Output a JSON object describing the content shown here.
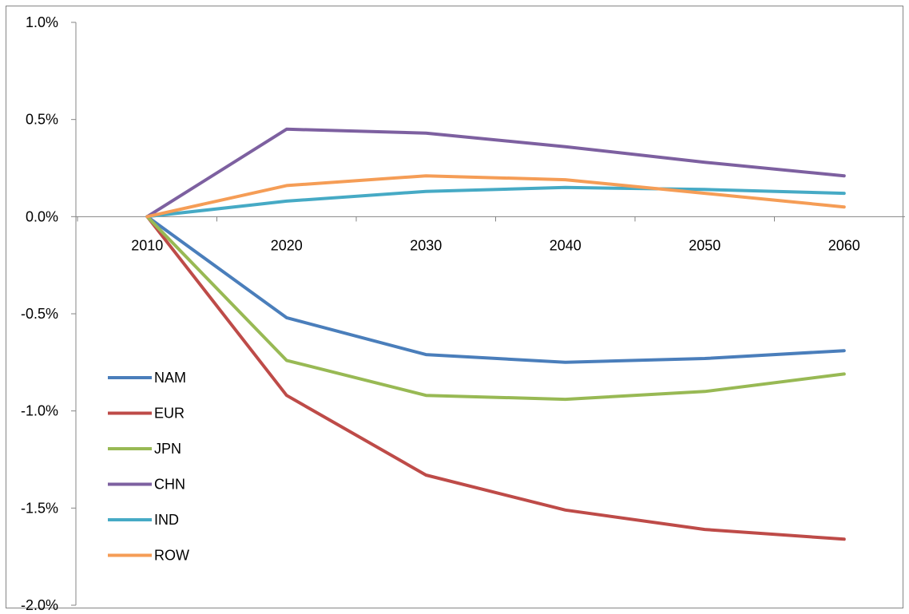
{
  "chart_data": {
    "type": "line",
    "title": "",
    "xlabel": "",
    "ylabel": "",
    "categories": [
      "2010",
      "2020",
      "2030",
      "2040",
      "2050",
      "2060"
    ],
    "ylim": [
      -0.02,
      0.01
    ],
    "y_ticks": [
      {
        "value": 0.01,
        "label": "1.0%"
      },
      {
        "value": 0.005,
        "label": "0.5%"
      },
      {
        "value": 0.0,
        "label": "0.0%"
      },
      {
        "value": -0.005,
        "label": "-0.5%"
      },
      {
        "value": -0.01,
        "label": "-1.0%"
      },
      {
        "value": -0.015,
        "label": "-1.5%"
      },
      {
        "value": -0.02,
        "label": "-2.0%"
      }
    ],
    "grid": false,
    "legend_position": "left",
    "series": [
      {
        "name": "NAM",
        "color": "#4a7ebb",
        "values": [
          0.0,
          -0.0052,
          -0.0071,
          -0.0075,
          -0.0073,
          -0.0069
        ]
      },
      {
        "name": "EUR",
        "color": "#be4b48",
        "values": [
          0.0,
          -0.0092,
          -0.0133,
          -0.0151,
          -0.0161,
          -0.0166
        ]
      },
      {
        "name": "JPN",
        "color": "#98b954",
        "values": [
          0.0,
          -0.0074,
          -0.0092,
          -0.0094,
          -0.009,
          -0.0081
        ]
      },
      {
        "name": "CHN",
        "color": "#7d60a0",
        "values": [
          0.0,
          0.0045,
          0.0043,
          0.0036,
          0.0028,
          0.0021
        ]
      },
      {
        "name": "IND",
        "color": "#46aac5",
        "values": [
          0.0,
          0.0008,
          0.0013,
          0.0015,
          0.0014,
          0.0012
        ]
      },
      {
        "name": "ROW",
        "color": "#f59d56",
        "values": [
          0.0,
          0.0016,
          0.0021,
          0.0019,
          0.0012,
          0.0005
        ]
      }
    ]
  }
}
